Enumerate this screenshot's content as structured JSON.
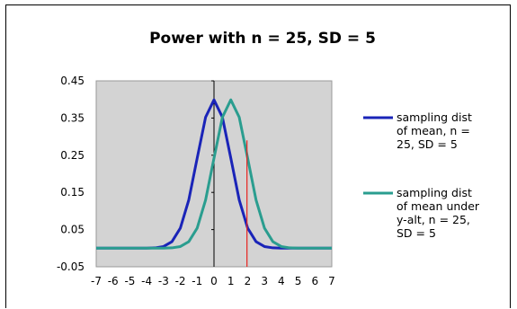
{
  "chart_data": {
    "type": "line",
    "title": "Power with n = 25, SD = 5",
    "xlabel": "",
    "ylabel": "",
    "x_ticks": [
      "-7",
      "-6",
      "-5",
      "-4",
      "-3",
      "-2",
      "-1",
      "0",
      "1",
      "2",
      "3",
      "4",
      "5",
      "6",
      "7"
    ],
    "y_ticks": [
      "0.45",
      "0.35",
      "0.25",
      "0.15",
      "0.05",
      "-0.05"
    ],
    "xlim": [
      -7,
      7
    ],
    "ylim": [
      -0.05,
      0.45
    ],
    "grid": false,
    "legend_position": "right",
    "plot_background": "#d3d3d3",
    "critical_line": {
      "x": 1.96,
      "y_top": 0.29,
      "color": "#e8231f"
    },
    "series": [
      {
        "legend": [
          "sampling dist",
          "of mean, n =",
          "25, SD = 5"
        ],
        "color": "#1a24b8",
        "mean": 0,
        "sd": 1,
        "x_points": [
          -7,
          -6.5,
          -6,
          -5.5,
          -5,
          -4.5,
          -4,
          -3.5,
          -3,
          -2.5,
          -2,
          -1.5,
          -1,
          -0.5,
          0,
          0.5,
          1,
          1.5,
          2,
          2.5,
          3,
          3.5,
          4,
          4.5,
          5,
          5.5,
          6,
          6.5,
          7
        ],
        "values": [
          0,
          0,
          0,
          0,
          0,
          0,
          0.0001,
          0.0009,
          0.0044,
          0.0175,
          0.054,
          0.1295,
          0.242,
          0.3521,
          0.3989,
          0.3521,
          0.242,
          0.1295,
          0.054,
          0.0175,
          0.0044,
          0.0009,
          0.0001,
          0,
          0,
          0,
          0,
          0,
          0
        ]
      },
      {
        "legend": [
          "sampling dist",
          "of mean under",
          "y-alt, n = 25,",
          "SD = 5"
        ],
        "color": "#2a9d8f",
        "mean": 1,
        "sd": 1,
        "x_points": [
          -7,
          -6.5,
          -6,
          -5.5,
          -5,
          -4.5,
          -4,
          -3.5,
          -3,
          -2.5,
          -2,
          -1.5,
          -1,
          -0.5,
          0,
          0.5,
          1,
          1.5,
          2,
          2.5,
          3,
          3.5,
          4,
          4.5,
          5,
          5.5,
          6,
          6.5,
          7
        ],
        "values": [
          0,
          0,
          0,
          0,
          0,
          0,
          0,
          0,
          0.0001,
          0.0009,
          0.0044,
          0.0175,
          0.054,
          0.1295,
          0.242,
          0.3521,
          0.3989,
          0.3521,
          0.242,
          0.1295,
          0.054,
          0.0175,
          0.0044,
          0.0009,
          0.0001,
          0,
          0,
          0,
          0
        ]
      }
    ]
  }
}
